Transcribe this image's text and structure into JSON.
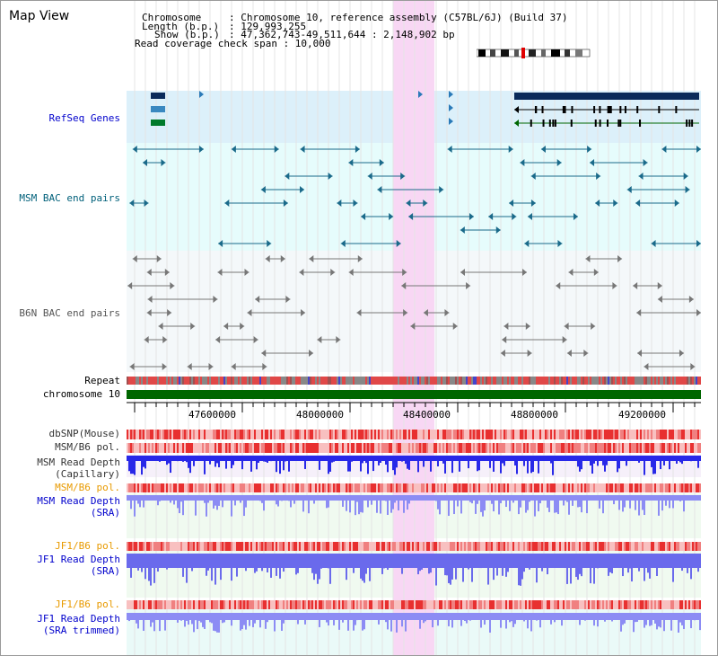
{
  "app": {
    "title": "Map View"
  },
  "info": {
    "chromosome_key": "Chromosome",
    "chromosome_val": ": Chromosome 10, reference assembly (C57BL/6J) (Build 37)",
    "length_key": "Length (b.p.)",
    "length_val": ": 129,993,255",
    "show_key": "Show (b.p.)",
    "show_val": ": 47,362,743-49,511,644 : 2,148,902 bp",
    "coverage": "Read coverage check span : 10,000"
  },
  "tracks": {
    "refseq": "RefSeq Genes",
    "msm_bac": "MSM BAC end pairs",
    "b6n_bac": "B6N BAC end pairs",
    "repeat": "Repeat",
    "chromosome": "chromosome 10",
    "dbsnp": "dbSNP(Mouse)",
    "msm_b6_pol": "MSM/B6 pol.",
    "msm_read_depth_cap_1": "MSM Read Depth",
    "msm_read_depth_cap_2": "(Capillary)",
    "msm_b6_pol_2": "MSM/B6 pol.",
    "msm_read_depth_sra_1": "MSM Read Depth",
    "msm_read_depth_sra_2": "(SRA)",
    "jf1_b6_pol": "JF1/B6 pol.",
    "jf1_read_depth_sra_1": "JF1 Read Depth",
    "jf1_read_depth_sra_2": "(SRA)",
    "jf1_b6_pol_2": "JF1/B6 pol.",
    "jf1_read_depth_trim_1": "JF1 Read Depth",
    "jf1_read_depth_trim_2": "(SRA trimmed)"
  },
  "axis": {
    "ticks": [
      "47600000",
      "48000000",
      "48400000",
      "48800000",
      "49200000"
    ]
  },
  "colors": {
    "highlight": "#f8d7f4",
    "refseq_bg": "#dcf0fa",
    "msm_bg": "#e6fcfc",
    "b6n_bg": "#f4f8fa",
    "label_blue": "#0000cc",
    "label_teal": "#00607a",
    "label_orange": "#e89a00",
    "chromosome_green": "#006600"
  }
}
